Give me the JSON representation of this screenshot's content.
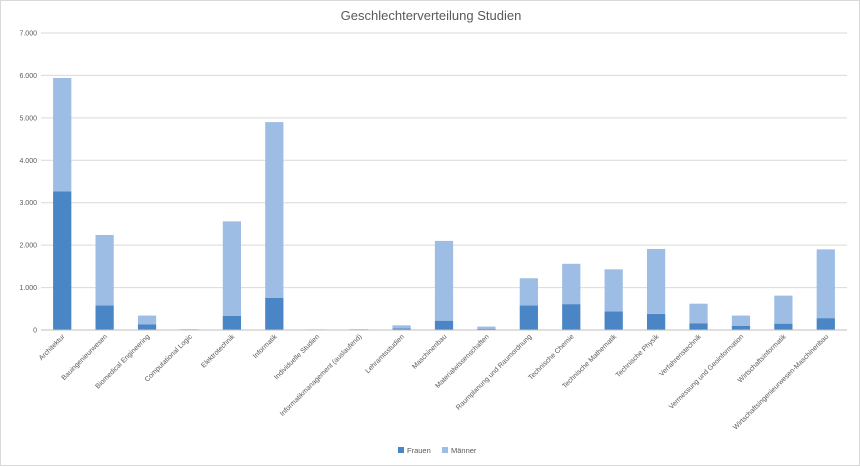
{
  "chart_data": {
    "type": "bar",
    "stacked": true,
    "title": "Geschlechterverteilung Studien",
    "xlabel": "",
    "ylabel": "",
    "ylim": [
      0,
      7000
    ],
    "yticks": [
      0,
      1000,
      2000,
      3000,
      4000,
      5000,
      6000,
      7000
    ],
    "ytick_labels": [
      "0",
      "1.000",
      "2.000",
      "3.000",
      "4.000",
      "5.000",
      "6.000",
      "7.000"
    ],
    "grid": true,
    "legend_position": "bottom",
    "categories": [
      "Architektur",
      "Bauingenieurwesen",
      "Biomedical Engineering",
      "Computational Logic",
      "Elektrotechnik",
      "Informatik",
      "Individuelle Studien",
      "Informatikmanagement (auslaufend)",
      "Lehramtsstudien",
      "Maschinenbau",
      "Materialwissenschaften",
      "Raumplanung und Raumordnung",
      "Technische Chemie",
      "Technische Mathematik",
      "Technische Physik",
      "Verfahrenstechnik",
      "Vermessung und Geoinformation",
      "Wirtschaftsinformatik",
      "Wirtschaftsingenieurwesen-Maschinenbau"
    ],
    "series": [
      {
        "name": "Frauen",
        "color": "#4a86c5",
        "values": [
          3270,
          580,
          130,
          5,
          330,
          760,
          5,
          5,
          40,
          220,
          30,
          580,
          610,
          440,
          380,
          160,
          100,
          150,
          280
        ]
      },
      {
        "name": "Männer",
        "color": "#9dbde4",
        "values": [
          2670,
          1660,
          210,
          15,
          2230,
          4140,
          10,
          15,
          70,
          1880,
          50,
          640,
          950,
          990,
          1530,
          460,
          240,
          660,
          1620
        ]
      }
    ]
  }
}
